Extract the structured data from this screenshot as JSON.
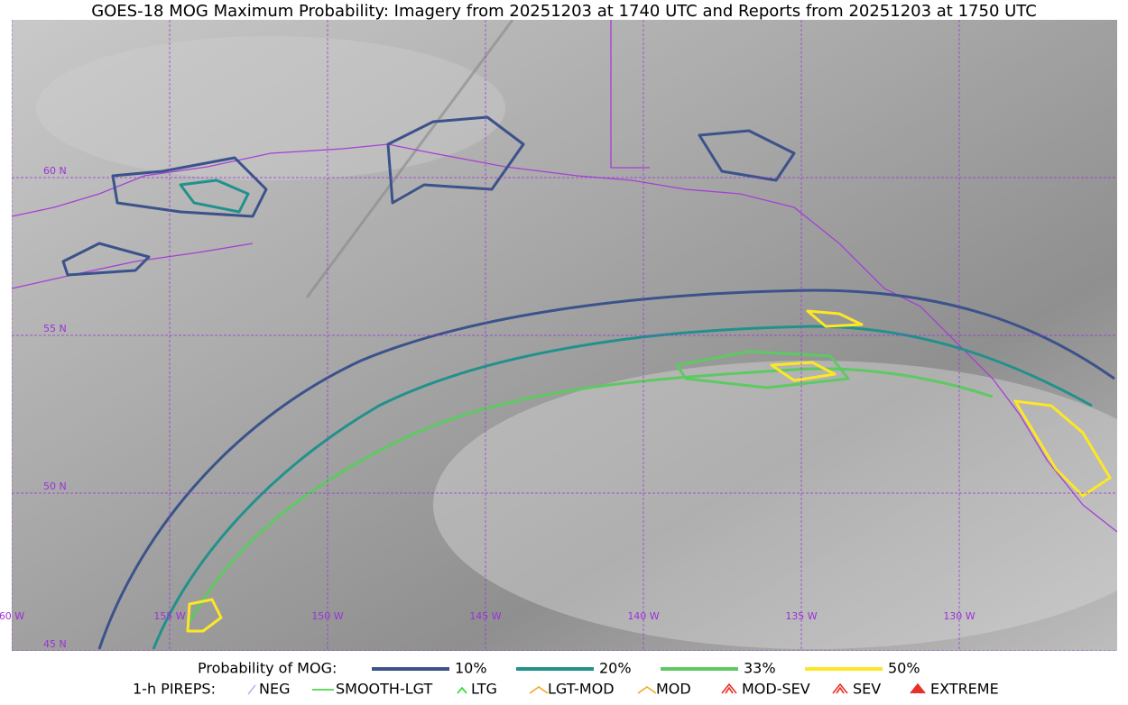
{
  "title": "GOES-18 MOG Maximum Probability: Imagery from 20251203 at 1740 UTC and Reports from 20251203 at 1750 UTC",
  "map": {
    "lat_labels": [
      "60 N",
      "55 N",
      "50 N",
      "45 N"
    ],
    "lon_labels": [
      "60 W",
      "155 W",
      "150 W",
      "145 W",
      "140 W",
      "135 W",
      "130 W"
    ]
  },
  "legend": {
    "probability": {
      "label": "Probability of MOG:",
      "items": [
        {
          "label": "10%",
          "color": "#3b528b"
        },
        {
          "label": "20%",
          "color": "#21918c"
        },
        {
          "label": "33%",
          "color": "#5ec962"
        },
        {
          "label": "50%",
          "color": "#fde725"
        }
      ]
    },
    "pireps": {
      "label": "1-h PIREPS:",
      "items": [
        {
          "label": "NEG",
          "color": "#b9b2f0"
        },
        {
          "label": "SMOOTH-LGT",
          "color": "#33cc33"
        },
        {
          "label": "LTG",
          "color": "#22dd22"
        },
        {
          "label": "LGT-MOD",
          "color": "#f5a623"
        },
        {
          "label": "MOD",
          "color": "#f5a623"
        },
        {
          "label": "MOD-SEV",
          "color": "#e8302a"
        },
        {
          "label": "SEV",
          "color": "#e8302a"
        },
        {
          "label": "EXTREME",
          "color": "#e8302a"
        }
      ]
    }
  }
}
